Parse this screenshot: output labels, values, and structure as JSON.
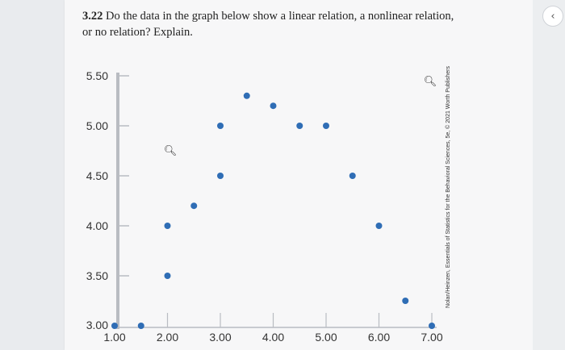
{
  "question": {
    "number": "3.22",
    "text": "Do the data in the graph below show a linear relation, a nonlinear relation, or no relation? Explain."
  },
  "credit": "Nolan/Heinzen, Essentials of Statistics for the Behavioral Sciences, 5e, © 2021 Worth Publishers",
  "nav": {
    "back_glyph": "‹"
  },
  "icons": {
    "zoom_top": "zoom-in-icon",
    "zoom_plot": "zoom-in-icon"
  },
  "colors": {
    "point": "#2f6db5",
    "axis": "#b9bcc2",
    "text": "#333333"
  },
  "chart_data": {
    "type": "scatter",
    "title": "",
    "xlabel": "",
    "ylabel": "",
    "xlim": [
      1.0,
      7.0
    ],
    "ylim": [
      3.0,
      5.5
    ],
    "x_ticks": [
      "1.00",
      "2.00",
      "3.00",
      "4.00",
      "5.00",
      "6.00",
      "7.00"
    ],
    "y_ticks": [
      "3.00",
      "3.50",
      "4.00",
      "4.50",
      "5.00",
      "5.50"
    ],
    "grid": false,
    "points": [
      {
        "x": 1.0,
        "y": 3.0
      },
      {
        "x": 1.5,
        "y": 3.0
      },
      {
        "x": 2.0,
        "y": 3.5
      },
      {
        "x": 2.0,
        "y": 4.0
      },
      {
        "x": 2.5,
        "y": 4.2
      },
      {
        "x": 3.0,
        "y": 4.5
      },
      {
        "x": 3.0,
        "y": 5.0
      },
      {
        "x": 3.5,
        "y": 5.3
      },
      {
        "x": 4.0,
        "y": 5.2
      },
      {
        "x": 4.5,
        "y": 5.0
      },
      {
        "x": 5.0,
        "y": 5.0
      },
      {
        "x": 5.5,
        "y": 4.5
      },
      {
        "x": 6.0,
        "y": 4.0
      },
      {
        "x": 6.5,
        "y": 3.25
      },
      {
        "x": 7.0,
        "y": 3.0
      }
    ]
  }
}
